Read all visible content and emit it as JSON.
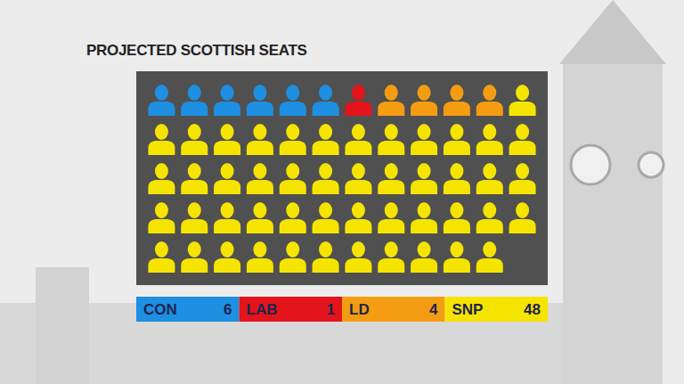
{
  "chart_data": {
    "type": "pictogram",
    "title": "PROJECTED SCOTTISH SEATS",
    "categories": [
      "CON",
      "LAB",
      "LD",
      "SNP"
    ],
    "values": [
      6,
      1,
      4,
      48
    ],
    "colors": [
      "#1e8fe1",
      "#e3141c",
      "#f59d12",
      "#f5e400"
    ],
    "legend": "bottom",
    "data_labels": true
  }
}
